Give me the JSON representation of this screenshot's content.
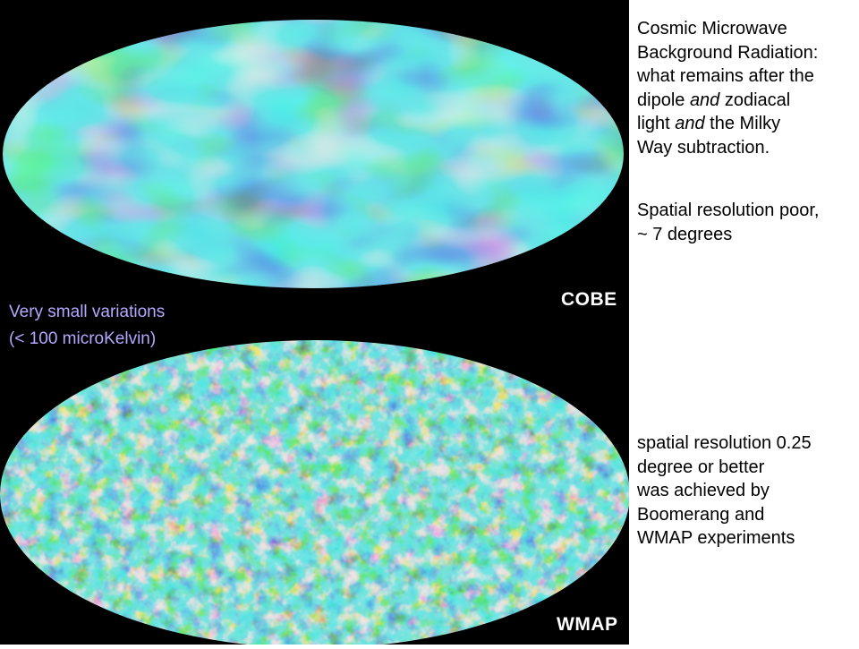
{
  "images": [
    {
      "label": "COBE"
    },
    {
      "label": "WMAP"
    }
  ],
  "overlay": {
    "lines": [
      "Very small variations",
      "(< 100 microKelvin)"
    ]
  },
  "notes": [
    {
      "lines": [
        [
          "Cosmic Microwave"
        ],
        [
          "Background Radiation:"
        ],
        [
          "what remains after the"
        ],
        [
          "dipole ",
          "and",
          " zodiacal"
        ],
        [
          "light ",
          "and",
          " the Milky"
        ],
        [
          "Way subtraction."
        ]
      ]
    },
    {
      "lines": [
        [
          "Spatial resolution poor,"
        ],
        [
          "~ 7 degrees"
        ]
      ]
    },
    {
      "lines": [
        [
          "spatial resolution 0.25"
        ],
        [
          "degree or better"
        ],
        [
          "was achieved by"
        ],
        [
          "Boomerang and"
        ],
        [
          "WMAP experiments"
        ]
      ]
    }
  ]
}
